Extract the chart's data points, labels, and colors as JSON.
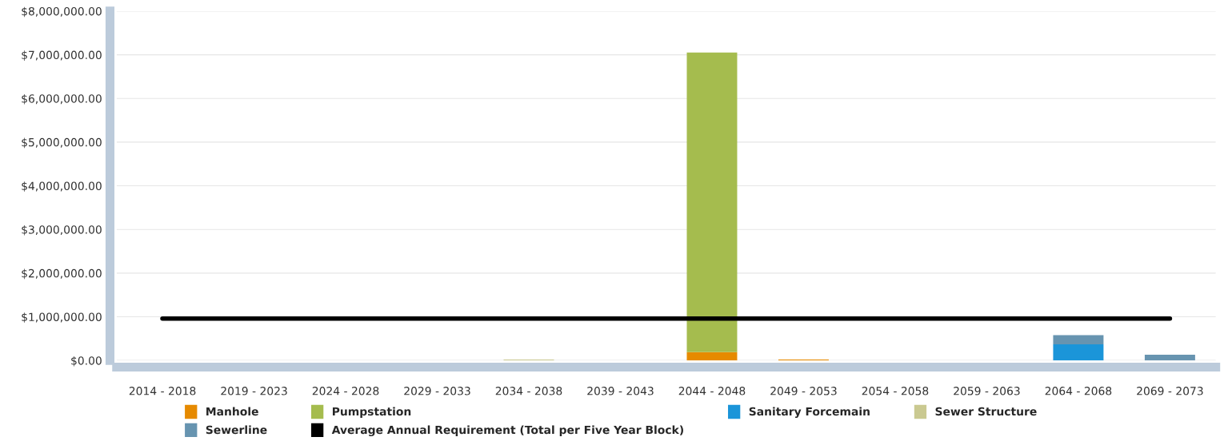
{
  "chart_data": {
    "type": "bar",
    "stacked": true,
    "categories": [
      "2014 - 2018",
      "2019 - 2023",
      "2024 - 2028",
      "2029 - 2033",
      "2034 - 2038",
      "2039 - 2043",
      "2044 - 2048",
      "2049 - 2053",
      "2054 - 2058",
      "2059 - 2063",
      "2064 - 2068",
      "2069 - 2073"
    ],
    "series": [
      {
        "name": "Manhole",
        "color": "#e68a00",
        "values": [
          0,
          0,
          0,
          0,
          0,
          0,
          190000,
          20000,
          0,
          0,
          0,
          0
        ]
      },
      {
        "name": "Pumpstation",
        "color": "#a5bc4e",
        "values": [
          0,
          0,
          0,
          0,
          0,
          0,
          6860000,
          0,
          0,
          0,
          0,
          0
        ]
      },
      {
        "name": "Sanitary Forcemain",
        "color": "#1b95d9",
        "values": [
          0,
          0,
          0,
          0,
          0,
          0,
          0,
          0,
          0,
          0,
          370000,
          0
        ]
      },
      {
        "name": "Sewer Structure",
        "color": "#cac991",
        "values": [
          0,
          0,
          0,
          0,
          20000,
          0,
          0,
          0,
          0,
          0,
          0,
          0
        ]
      },
      {
        "name": "Sewerline",
        "color": "#6794b0",
        "values": [
          0,
          0,
          0,
          0,
          0,
          0,
          0,
          0,
          0,
          0,
          210000,
          130000
        ]
      },
      {
        "name": "Average Annual Requirement (Total per Five Year Block)",
        "type": "line",
        "color": "#000000",
        "values": [
          960000,
          960000,
          960000,
          960000,
          960000,
          960000,
          960000,
          960000,
          960000,
          960000,
          960000,
          960000
        ]
      }
    ],
    "ylim": [
      0,
      8000000
    ],
    "yticks": [
      {
        "value": 0,
        "label": "$0.00"
      },
      {
        "value": 1000000,
        "label": "$1,000,000.00"
      },
      {
        "value": 2000000,
        "label": "$2,000,000.00"
      },
      {
        "value": 3000000,
        "label": "$3,000,000.00"
      },
      {
        "value": 4000000,
        "label": "$4,000,000.00"
      },
      {
        "value": 5000000,
        "label": "$5,000,000.00"
      },
      {
        "value": 6000000,
        "label": "$6,000,000.00"
      },
      {
        "value": 7000000,
        "label": "$7,000,000.00"
      },
      {
        "value": 8000000,
        "label": "$8,000,000.00"
      }
    ],
    "grid": "y",
    "legend": "bottom"
  }
}
